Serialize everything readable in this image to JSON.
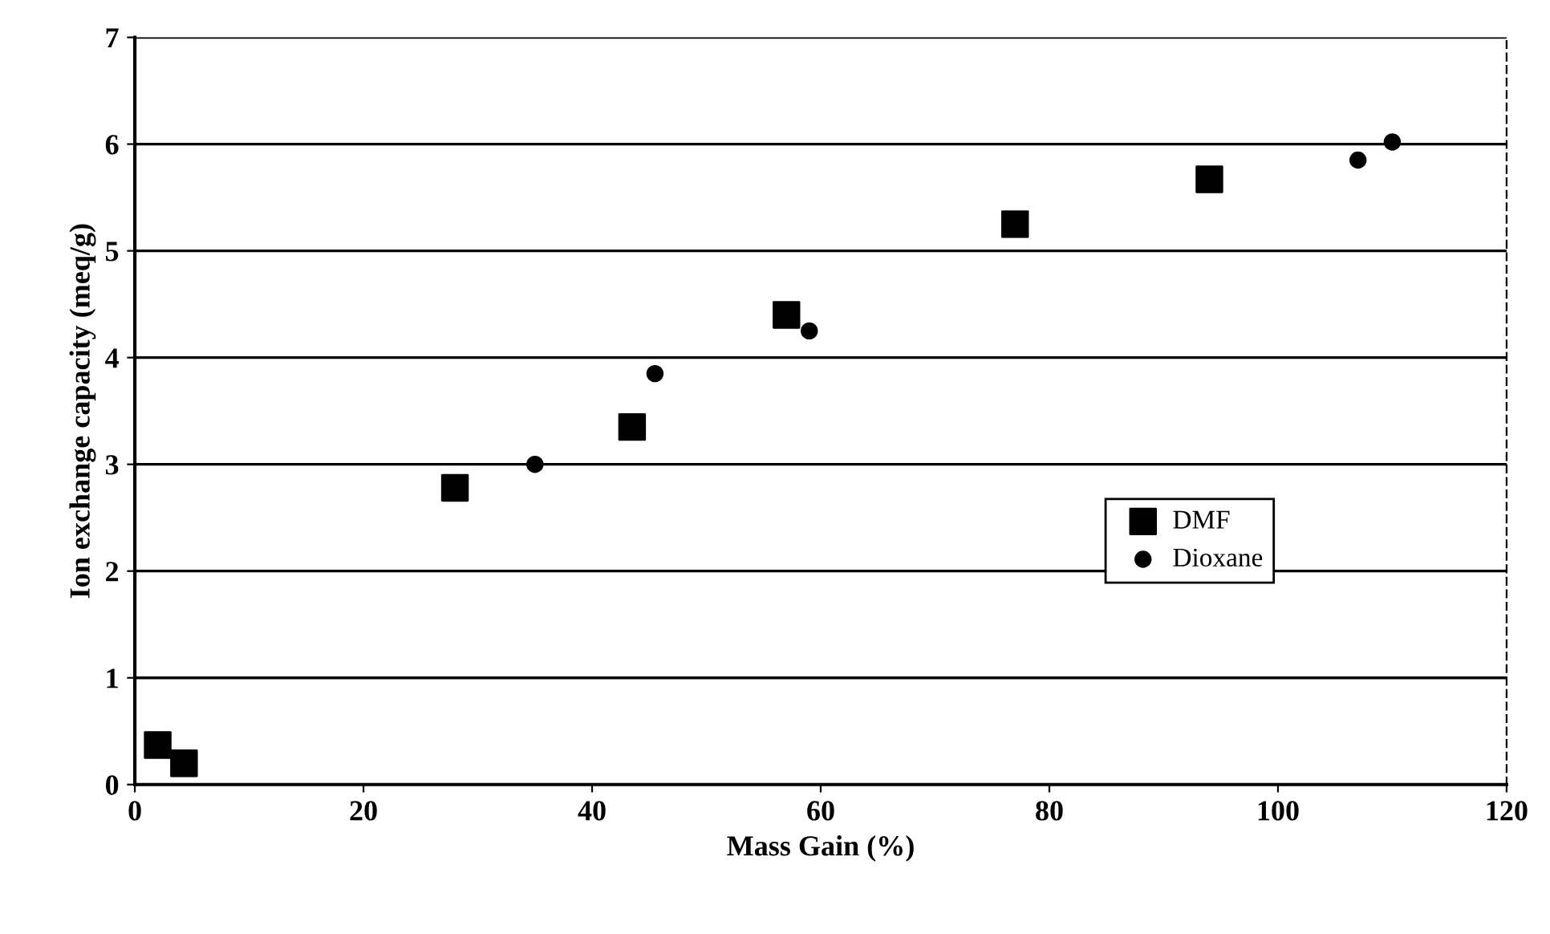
{
  "chart_data": {
    "type": "scatter",
    "xlabel": "Mass Gain (%)",
    "ylabel": "Ion exchange capacity (meq/g)",
    "xlim": [
      0,
      120
    ],
    "xticks": [
      0,
      20,
      40,
      60,
      80,
      100,
      120
    ],
    "ylim": [
      0,
      7
    ],
    "yticks": [
      0,
      1,
      2,
      3,
      4,
      5,
      6,
      7
    ],
    "grid": "y",
    "legend": "right",
    "series": [
      {
        "name": "DMF",
        "color": "#000000",
        "marker": "square",
        "x": [
          2,
          4.3,
          28,
          43.5,
          57,
          77,
          94
        ],
        "values": [
          0.37,
          0.2,
          2.78,
          3.35,
          4.4,
          5.25,
          5.67
        ]
      },
      {
        "name": "Dioxane",
        "color": "#000000",
        "marker": "circle",
        "x": [
          35,
          45.5,
          59,
          107,
          110
        ],
        "values": [
          3.0,
          3.85,
          4.25,
          5.85,
          6.02
        ]
      }
    ]
  }
}
